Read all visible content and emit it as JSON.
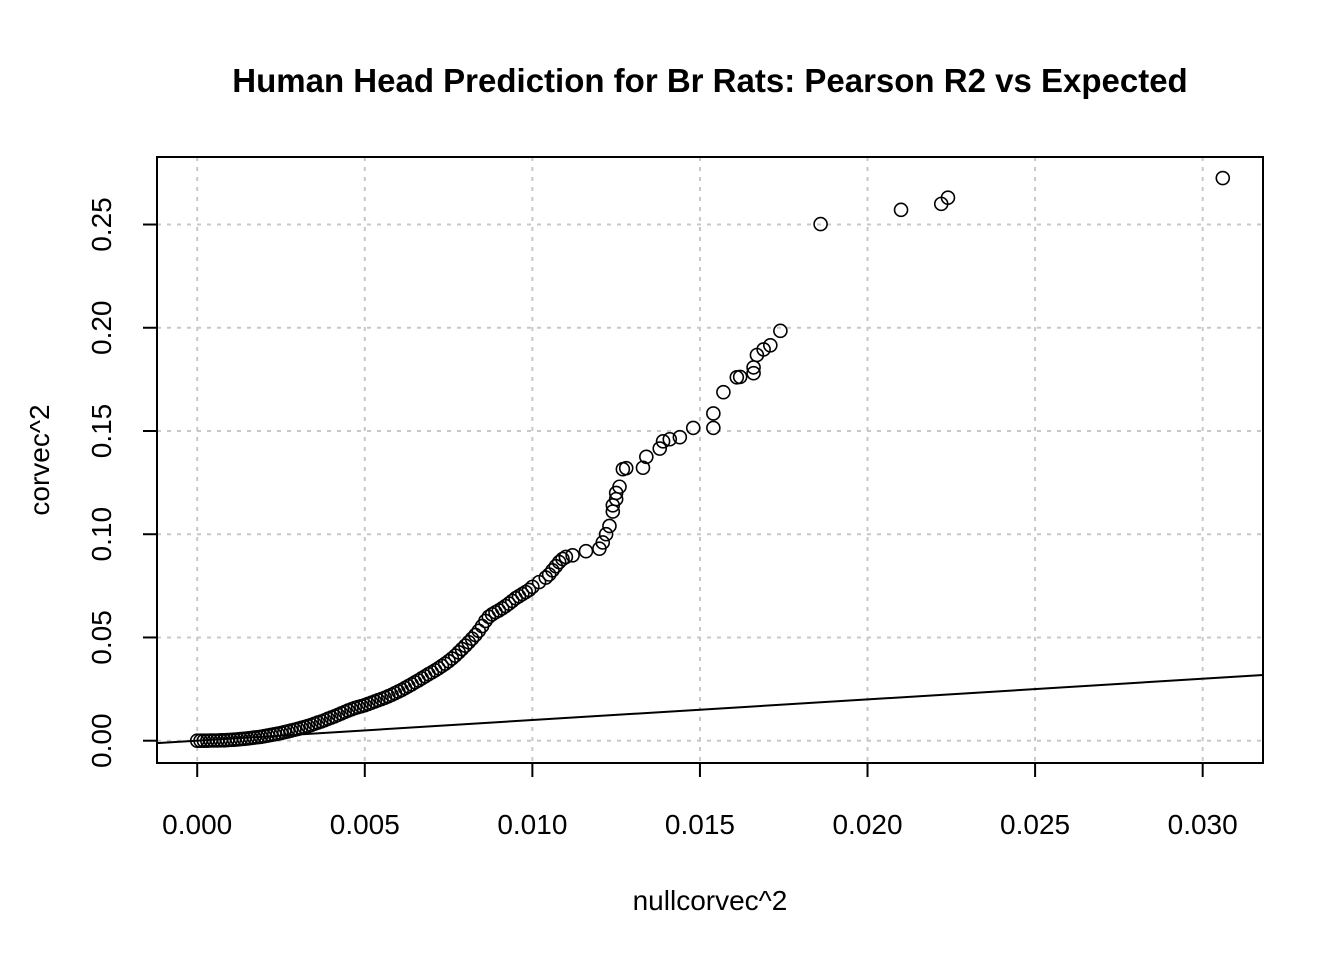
{
  "chart_data": {
    "type": "scatter",
    "title": "Human Head Prediction for Br Rats: Pearson R2 vs Expected",
    "xlabel": "nullcorvec^2",
    "ylabel": "corvec^2",
    "xlim": [
      -0.0012,
      0.0318
    ],
    "ylim": [
      -0.0108,
      0.2827
    ],
    "grid": true,
    "xticks": [
      0.0,
      0.005,
      0.01,
      0.015,
      0.02,
      0.025,
      0.03
    ],
    "xtick_labels": [
      "0.000",
      "0.005",
      "0.010",
      "0.015",
      "0.020",
      "0.025",
      "0.030"
    ],
    "yticks": [
      0.0,
      0.05,
      0.1,
      0.15,
      0.2,
      0.25
    ],
    "ytick_labels": [
      "0.00",
      "0.05",
      "0.10",
      "0.15",
      "0.20",
      "0.25"
    ],
    "reference_line": {
      "intercept": 0,
      "slope": 1
    },
    "points": [
      [
        0.0,
        0.0
      ],
      [
        0.0001,
        0.0
      ],
      [
        0.0002,
        0.0
      ],
      [
        0.0003,
        0.0
      ],
      [
        0.0004,
        0.0001
      ],
      [
        0.0005,
        0.0001
      ],
      [
        0.0006,
        0.0001
      ],
      [
        0.0007,
        0.0002
      ],
      [
        0.0008,
        0.0002
      ],
      [
        0.0009,
        0.0003
      ],
      [
        0.001,
        0.0004
      ],
      [
        0.0011,
        0.0005
      ],
      [
        0.0012,
        0.0006
      ],
      [
        0.0013,
        0.0008
      ],
      [
        0.0014,
        0.0009
      ],
      [
        0.0015,
        0.0011
      ],
      [
        0.0016,
        0.0013
      ],
      [
        0.0017,
        0.0015
      ],
      [
        0.0018,
        0.0017
      ],
      [
        0.0019,
        0.0019
      ],
      [
        0.002,
        0.0022
      ],
      [
        0.0021,
        0.0025
      ],
      [
        0.0022,
        0.0028
      ],
      [
        0.0023,
        0.0031
      ],
      [
        0.0024,
        0.0034
      ],
      [
        0.0025,
        0.0037
      ],
      [
        0.0026,
        0.0041
      ],
      [
        0.0027,
        0.0045
      ],
      [
        0.0028,
        0.0049
      ],
      [
        0.0029,
        0.0053
      ],
      [
        0.003,
        0.0057
      ],
      [
        0.0031,
        0.0062
      ],
      [
        0.0032,
        0.0066
      ],
      [
        0.0033,
        0.0071
      ],
      [
        0.0034,
        0.0076
      ],
      [
        0.0035,
        0.0082
      ],
      [
        0.0036,
        0.0088
      ],
      [
        0.0037,
        0.0093
      ],
      [
        0.0038,
        0.0099
      ],
      [
        0.0039,
        0.0106
      ],
      [
        0.004,
        0.0112
      ],
      [
        0.0041,
        0.0118
      ],
      [
        0.0042,
        0.0125
      ],
      [
        0.0043,
        0.0132
      ],
      [
        0.0044,
        0.0139
      ],
      [
        0.0045,
        0.0146
      ],
      [
        0.0046,
        0.0152
      ],
      [
        0.0047,
        0.0158
      ],
      [
        0.0048,
        0.0163
      ],
      [
        0.0049,
        0.0167
      ],
      [
        0.005,
        0.0172
      ],
      [
        0.0051,
        0.0178
      ],
      [
        0.0052,
        0.0184
      ],
      [
        0.0053,
        0.019
      ],
      [
        0.0054,
        0.0196
      ],
      [
        0.0055,
        0.0202
      ],
      [
        0.0056,
        0.0208
      ],
      [
        0.0057,
        0.0215
      ],
      [
        0.0058,
        0.0222
      ],
      [
        0.0059,
        0.023
      ],
      [
        0.006,
        0.0238
      ],
      [
        0.0061,
        0.0246
      ],
      [
        0.0062,
        0.0255
      ],
      [
        0.0063,
        0.0264
      ],
      [
        0.0064,
        0.0273
      ],
      [
        0.0065,
        0.0283
      ],
      [
        0.0066,
        0.0292
      ],
      [
        0.0067,
        0.0302
      ],
      [
        0.0068,
        0.0312
      ],
      [
        0.0069,
        0.0322
      ],
      [
        0.007,
        0.0331
      ],
      [
        0.0071,
        0.0341
      ],
      [
        0.0072,
        0.0351
      ],
      [
        0.0073,
        0.0362
      ],
      [
        0.0074,
        0.0373
      ],
      [
        0.0075,
        0.0385
      ],
      [
        0.0076,
        0.0398
      ],
      [
        0.0077,
        0.0412
      ],
      [
        0.0078,
        0.0428
      ],
      [
        0.0079,
        0.0444
      ],
      [
        0.008,
        0.046
      ],
      [
        0.0081,
        0.0477
      ],
      [
        0.0082,
        0.0494
      ],
      [
        0.0083,
        0.0512
      ],
      [
        0.0084,
        0.0532
      ],
      [
        0.0085,
        0.0555
      ],
      [
        0.0086,
        0.058
      ],
      [
        0.0087,
        0.06
      ],
      [
        0.0088,
        0.0612
      ],
      [
        0.0089,
        0.0622
      ],
      [
        0.009,
        0.0631
      ],
      [
        0.0091,
        0.0641
      ],
      [
        0.0092,
        0.0652
      ],
      [
        0.0093,
        0.0664
      ],
      [
        0.0094,
        0.0677
      ],
      [
        0.0095,
        0.069
      ],
      [
        0.0096,
        0.07
      ],
      [
        0.0097,
        0.071
      ],
      [
        0.0098,
        0.072
      ],
      [
        0.0099,
        0.073
      ],
      [
        0.01,
        0.0745
      ],
      [
        0.0102,
        0.0768
      ],
      [
        0.0104,
        0.079
      ],
      [
        0.0105,
        0.0805
      ],
      [
        0.0106,
        0.0825
      ],
      [
        0.0107,
        0.0845
      ],
      [
        0.0108,
        0.0865
      ],
      [
        0.0109,
        0.088
      ],
      [
        0.011,
        0.089
      ],
      [
        0.0112,
        0.0898
      ],
      [
        0.0116,
        0.0918
      ],
      [
        0.012,
        0.093
      ],
      [
        0.0121,
        0.096
      ],
      [
        0.0122,
        0.1
      ],
      [
        0.0123,
        0.104
      ],
      [
        0.0124,
        0.111
      ],
      [
        0.0124,
        0.114
      ],
      [
        0.0125,
        0.117
      ],
      [
        0.0125,
        0.12
      ],
      [
        0.0126,
        0.123
      ],
      [
        0.0127,
        0.1315
      ],
      [
        0.0128,
        0.132
      ],
      [
        0.0133,
        0.1322
      ],
      [
        0.0134,
        0.1375
      ],
      [
        0.0138,
        0.1415
      ],
      [
        0.0139,
        0.145
      ],
      [
        0.0141,
        0.146
      ],
      [
        0.0144,
        0.147
      ],
      [
        0.0148,
        0.1515
      ],
      [
        0.0154,
        0.1515
      ],
      [
        0.0154,
        0.1585
      ],
      [
        0.0157,
        0.1688
      ],
      [
        0.0161,
        0.176
      ],
      [
        0.0162,
        0.1762
      ],
      [
        0.0166,
        0.178
      ],
      [
        0.0166,
        0.1808
      ],
      [
        0.0167,
        0.1868
      ],
      [
        0.0169,
        0.1895
      ],
      [
        0.0171,
        0.1915
      ],
      [
        0.0174,
        0.1985
      ],
      [
        0.0186,
        0.2502
      ],
      [
        0.021,
        0.2571
      ],
      [
        0.0222,
        0.26
      ],
      [
        0.0224,
        0.263
      ],
      [
        0.0306,
        0.2725
      ]
    ]
  }
}
